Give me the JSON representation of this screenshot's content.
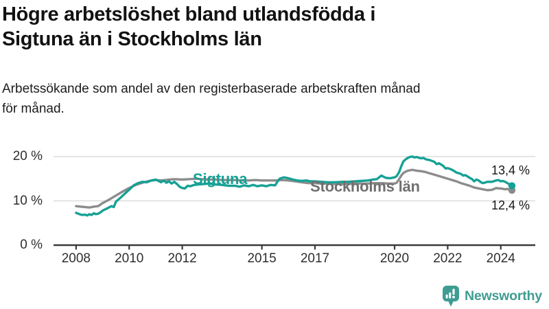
{
  "header": {
    "title": "Högre arbetslöshet bland utlandsfödda i Sigtuna än i Stockholms län",
    "subtitle": "Arbetssökande som andel av den registerbaserade arbetskraften månad för månad."
  },
  "chart_data": {
    "type": "line",
    "x_axis": {
      "ticks": [
        2008,
        2010,
        2012,
        2015,
        2017,
        2020,
        2022,
        2024
      ],
      "range": [
        2007.15,
        2025.3
      ]
    },
    "y_axis": {
      "ticks": [
        0,
        10,
        20
      ],
      "tick_suffix": " %",
      "range": [
        0,
        22
      ]
    },
    "grid": true,
    "series": [
      {
        "name": "Sigtuna",
        "color": "#16a195",
        "points": [
          [
            2008,
            7.3
          ],
          [
            2008.08,
            7.1
          ],
          [
            2008.17,
            6.9
          ],
          [
            2008.25,
            6.8
          ],
          [
            2008.33,
            6.9
          ],
          [
            2008.42,
            6.7
          ],
          [
            2008.5,
            7
          ],
          [
            2008.58,
            6.8
          ],
          [
            2008.67,
            7.2
          ],
          [
            2008.75,
            7
          ],
          [
            2008.83,
            7.1
          ],
          [
            2008.92,
            7.4
          ],
          [
            2009,
            7.8
          ],
          [
            2009.17,
            8.3
          ],
          [
            2009.33,
            8.8
          ],
          [
            2009.42,
            8.6
          ],
          [
            2009.5,
            9.8
          ],
          [
            2009.67,
            10.7
          ],
          [
            2009.83,
            11.6
          ],
          [
            2010,
            12.5
          ],
          [
            2010.17,
            13.5
          ],
          [
            2010.33,
            14
          ],
          [
            2010.5,
            14.3
          ],
          [
            2010.67,
            14.2
          ],
          [
            2010.83,
            14.6
          ],
          [
            2011,
            14.8
          ],
          [
            2011.1,
            14.5
          ],
          [
            2011.2,
            14.2
          ],
          [
            2011.3,
            14.6
          ],
          [
            2011.4,
            14.1
          ],
          [
            2011.5,
            14.4
          ],
          [
            2011.6,
            13.9
          ],
          [
            2011.7,
            14.3
          ],
          [
            2011.8,
            13.8
          ],
          [
            2011.9,
            13.2
          ],
          [
            2012,
            12.9
          ],
          [
            2012.1,
            12.8
          ],
          [
            2012.2,
            13.4
          ],
          [
            2012.3,
            13.3
          ],
          [
            2012.45,
            13.6
          ],
          [
            2012.6,
            13.7
          ],
          [
            2012.8,
            13.8
          ],
          [
            2013,
            13.9
          ],
          [
            2013.25,
            13.7
          ],
          [
            2013.5,
            13.6
          ],
          [
            2013.75,
            13.4
          ],
          [
            2014,
            13.4
          ],
          [
            2014.17,
            13.2
          ],
          [
            2014.33,
            13.5
          ],
          [
            2014.5,
            13.3
          ],
          [
            2014.67,
            13.6
          ],
          [
            2014.83,
            13.3
          ],
          [
            2015,
            13.5
          ],
          [
            2015.17,
            13.3
          ],
          [
            2015.33,
            13.6
          ],
          [
            2015.5,
            13.5
          ],
          [
            2015.58,
            14.3
          ],
          [
            2015.67,
            15
          ],
          [
            2015.83,
            15.3
          ],
          [
            2016,
            15.1
          ],
          [
            2016.17,
            14.8
          ],
          [
            2016.33,
            14.6
          ],
          [
            2016.5,
            14.5
          ],
          [
            2016.67,
            14.6
          ],
          [
            2016.83,
            14.4
          ],
          [
            2017,
            14.4
          ],
          [
            2017.25,
            14.3
          ],
          [
            2017.5,
            14.2
          ],
          [
            2017.75,
            14.2
          ],
          [
            2018,
            14.3
          ],
          [
            2018.25,
            14.3
          ],
          [
            2018.5,
            14.4
          ],
          [
            2018.75,
            14.5
          ],
          [
            2019,
            14.6
          ],
          [
            2019.17,
            14.8
          ],
          [
            2019.33,
            14.9
          ],
          [
            2019.5,
            15.7
          ],
          [
            2019.67,
            15.2
          ],
          [
            2019.83,
            15.1
          ],
          [
            2020,
            15.3
          ],
          [
            2020.08,
            15.6
          ],
          [
            2020.17,
            16.5
          ],
          [
            2020.25,
            17.8
          ],
          [
            2020.33,
            18.9
          ],
          [
            2020.42,
            19.4
          ],
          [
            2020.5,
            19.7
          ],
          [
            2020.58,
            19.9
          ],
          [
            2020.67,
            20
          ],
          [
            2020.75,
            19.8
          ],
          [
            2020.83,
            19.9
          ],
          [
            2020.92,
            19.7
          ],
          [
            2021,
            19.6
          ],
          [
            2021.08,
            19.7
          ],
          [
            2021.17,
            19.4
          ],
          [
            2021.33,
            19.2
          ],
          [
            2021.5,
            18.8
          ],
          [
            2021.58,
            18.3
          ],
          [
            2021.67,
            18.5
          ],
          [
            2021.83,
            17.9
          ],
          [
            2021.92,
            17.3
          ],
          [
            2022,
            17.4
          ],
          [
            2022.17,
            17
          ],
          [
            2022.33,
            16.4
          ],
          [
            2022.5,
            16.1
          ],
          [
            2022.58,
            15.7
          ],
          [
            2022.67,
            15.8
          ],
          [
            2022.83,
            15.2
          ],
          [
            2022.92,
            14.9
          ],
          [
            2023,
            14.4
          ],
          [
            2023.08,
            14.8
          ],
          [
            2023.17,
            14.6
          ],
          [
            2023.25,
            14.2
          ],
          [
            2023.33,
            14
          ],
          [
            2023.5,
            14.3
          ],
          [
            2023.67,
            14.3
          ],
          [
            2023.83,
            14.6
          ],
          [
            2023.92,
            14.7
          ],
          [
            2024,
            14.4
          ],
          [
            2024.08,
            14.5
          ],
          [
            2024.17,
            14.3
          ],
          [
            2024.25,
            14
          ],
          [
            2024.33,
            13.7
          ],
          [
            2024.42,
            13.4
          ]
        ]
      },
      {
        "name": "Stockholms län",
        "color": "#8c8c8c",
        "points": [
          [
            2008,
            8.8
          ],
          [
            2008.17,
            8.7
          ],
          [
            2008.33,
            8.6
          ],
          [
            2008.5,
            8.5
          ],
          [
            2008.67,
            8.7
          ],
          [
            2008.83,
            8.8
          ],
          [
            2009,
            9.5
          ],
          [
            2009.25,
            10.3
          ],
          [
            2009.5,
            11.2
          ],
          [
            2009.75,
            12.1
          ],
          [
            2010,
            12.9
          ],
          [
            2010.25,
            13.6
          ],
          [
            2010.5,
            14.1
          ],
          [
            2010.75,
            14.5
          ],
          [
            2011,
            14.7
          ],
          [
            2011.25,
            14.6
          ],
          [
            2011.5,
            14.8
          ],
          [
            2011.75,
            14.9
          ],
          [
            2012,
            14.8
          ],
          [
            2012.25,
            14.9
          ],
          [
            2012.5,
            15
          ],
          [
            2012.75,
            14.9
          ],
          [
            2013,
            14.8
          ],
          [
            2013.25,
            14.8
          ],
          [
            2013.5,
            14.7
          ],
          [
            2013.75,
            14.7
          ],
          [
            2014,
            14.7
          ],
          [
            2014.25,
            14.6
          ],
          [
            2014.5,
            14.6
          ],
          [
            2014.75,
            14.7
          ],
          [
            2015,
            14.6
          ],
          [
            2015.25,
            14.6
          ],
          [
            2015.5,
            14.6
          ],
          [
            2015.75,
            14.7
          ],
          [
            2016,
            14.6
          ],
          [
            2016.25,
            14.4
          ],
          [
            2016.5,
            14.2
          ],
          [
            2016.75,
            14
          ],
          [
            2017,
            14
          ],
          [
            2017.25,
            13.9
          ],
          [
            2017.5,
            13.9
          ],
          [
            2017.75,
            13.8
          ],
          [
            2018,
            13.8
          ],
          [
            2018.25,
            13.8
          ],
          [
            2018.5,
            13.9
          ],
          [
            2018.75,
            13.9
          ],
          [
            2019,
            13.9
          ],
          [
            2019.25,
            14
          ],
          [
            2019.5,
            14
          ],
          [
            2019.75,
            13.9
          ],
          [
            2020,
            13.9
          ],
          [
            2020.08,
            14.1
          ],
          [
            2020.17,
            14.9
          ],
          [
            2020.25,
            15.7
          ],
          [
            2020.33,
            16.3
          ],
          [
            2020.42,
            16.6
          ],
          [
            2020.5,
            16.8
          ],
          [
            2020.58,
            16.9
          ],
          [
            2020.67,
            17
          ],
          [
            2020.75,
            16.9
          ],
          [
            2020.83,
            16.8
          ],
          [
            2021,
            16.7
          ],
          [
            2021.17,
            16.5
          ],
          [
            2021.33,
            16.2
          ],
          [
            2021.5,
            15.9
          ],
          [
            2021.67,
            15.6
          ],
          [
            2021.83,
            15.3
          ],
          [
            2022,
            15
          ],
          [
            2022.17,
            14.7
          ],
          [
            2022.33,
            14.4
          ],
          [
            2022.5,
            14
          ],
          [
            2022.67,
            13.7
          ],
          [
            2022.83,
            13.4
          ],
          [
            2023,
            13
          ],
          [
            2023.17,
            12.8
          ],
          [
            2023.33,
            12.6
          ],
          [
            2023.5,
            12.4
          ],
          [
            2023.67,
            12.5
          ],
          [
            2023.83,
            12.9
          ],
          [
            2023.92,
            12.8
          ],
          [
            2024,
            12.8
          ],
          [
            2024.17,
            12.6
          ],
          [
            2024.25,
            12.7
          ],
          [
            2024.33,
            12.5
          ],
          [
            2024.42,
            12.4
          ]
        ]
      }
    ],
    "end_labels": [
      "13,4 %",
      "12,4 %"
    ],
    "end_values": [
      13.4,
      12.4
    ],
    "title": "Högre arbetslöshet bland utlandsfödda i Sigtuna än i Stockholms län",
    "xlabel": "",
    "ylabel": "",
    "legend_position": "inline-on-lines"
  },
  "footer": {
    "brand": "Newsworthy"
  }
}
